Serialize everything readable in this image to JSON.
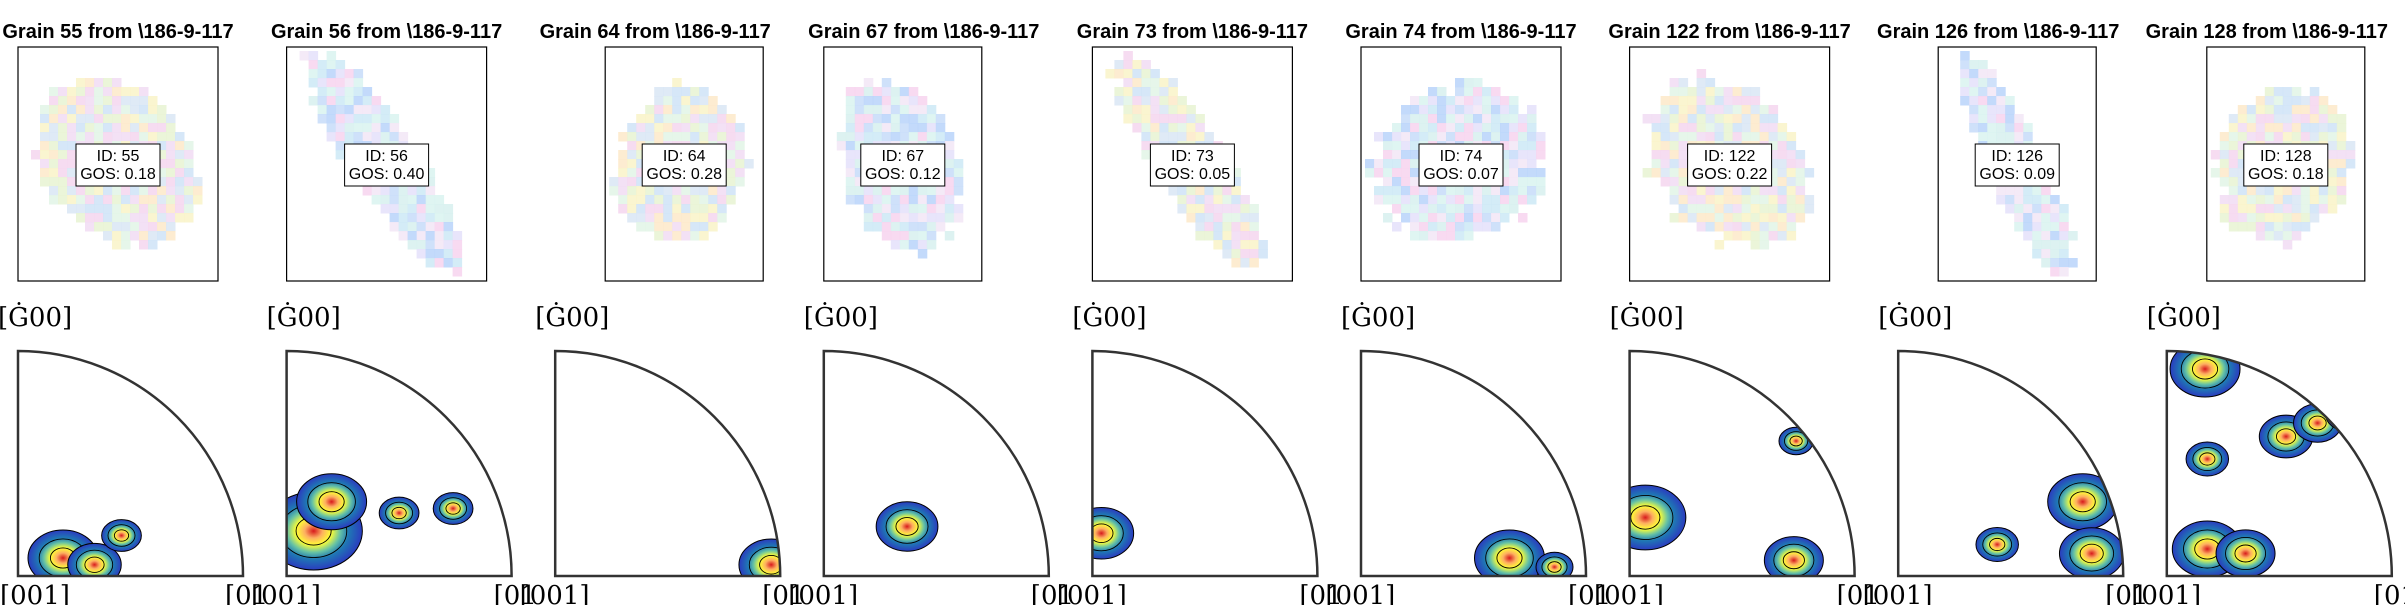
{
  "chart_data": {
    "type": "grain-orientation-panels",
    "map_title_template": "Grain {id} from \\186-9-117",
    "ipf_labels": {
      "top": "[Ġ00]",
      "bottom_left": "[001]",
      "bottom_right": "[01"
    },
    "grains": [
      {
        "id": 55,
        "title": "Grain 55 from \\186-9-117",
        "id_text": "ID: 55",
        "gos_text": "GOS: 0.18",
        "gos": 0.18,
        "blobs": [
          {
            "u": 0.2,
            "v": 0.08,
            "s": 1.0
          },
          {
            "u": 0.34,
            "v": 0.05,
            "s": 0.7
          },
          {
            "u": 0.46,
            "v": 0.18,
            "s": 0.45
          }
        ]
      },
      {
        "id": 56,
        "title": "Grain 56 from \\186-9-117",
        "id_text": "ID: 56",
        "gos_text": "GOS: 0.40",
        "gos": 0.4,
        "blobs": [
          {
            "u": 0.12,
            "v": 0.2,
            "s": 1.5
          },
          {
            "u": 0.2,
            "v": 0.33,
            "s": 1.0
          },
          {
            "u": 0.5,
            "v": 0.28,
            "s": 0.45
          },
          {
            "u": 0.74,
            "v": 0.3,
            "s": 0.45
          }
        ]
      },
      {
        "id": 64,
        "title": "Grain 64 from \\186-9-117",
        "id_text": "ID: 64",
        "gos_text": "GOS: 0.28",
        "gos": 0.28,
        "blobs": [
          {
            "u": 0.96,
            "v": 0.05,
            "s": 0.9
          }
        ]
      },
      {
        "id": 67,
        "title": "Grain 67 from \\186-9-117",
        "id_text": "ID: 67",
        "gos_text": "GOS: 0.12",
        "gos": 0.12,
        "blobs": [
          {
            "u": 0.37,
            "v": 0.22,
            "s": 0.85
          }
        ]
      },
      {
        "id": 73,
        "title": "Grain 73 from \\186-9-117",
        "id_text": "ID: 73",
        "gos_text": "GOS: 0.05",
        "gos": 0.05,
        "blobs": [
          {
            "u": 0.04,
            "v": 0.19,
            "s": 0.9
          }
        ]
      },
      {
        "id": 74,
        "title": "Grain 74 from \\186-9-117",
        "id_text": "ID: 74",
        "gos_text": "GOS: 0.07",
        "gos": 0.07,
        "blobs": [
          {
            "u": 0.66,
            "v": 0.08,
            "s": 1.0
          },
          {
            "u": 0.86,
            "v": 0.04,
            "s": 0.4
          }
        ]
      },
      {
        "id": 122,
        "title": "Grain 122 from \\186-9-117",
        "id_text": "ID: 122",
        "gos_text": "GOS: 0.22",
        "gos": 0.22,
        "blobs": [
          {
            "u": 0.07,
            "v": 0.26,
            "s": 1.2
          },
          {
            "u": 0.73,
            "v": 0.07,
            "s": 0.8
          },
          {
            "u": 0.74,
            "v": 0.6,
            "s": 0.35
          }
        ]
      },
      {
        "id": 126,
        "title": "Grain 126 from \\186-9-117",
        "id_text": "ID: 126",
        "gos_text": "GOS: 0.09",
        "gos": 0.09,
        "blobs": [
          {
            "u": 0.82,
            "v": 0.33,
            "s": 1.0
          },
          {
            "u": 0.86,
            "v": 0.1,
            "s": 0.9
          },
          {
            "u": 0.44,
            "v": 0.14,
            "s": 0.5
          }
        ]
      },
      {
        "id": 128,
        "title": "Grain 128 from \\186-9-117",
        "id_text": "ID: 128",
        "gos_text": "GOS: 0.18",
        "gos": 0.18,
        "blobs": [
          {
            "u": 0.18,
            "v": 0.12,
            "s": 1.0
          },
          {
            "u": 0.35,
            "v": 0.1,
            "s": 0.8
          },
          {
            "u": 0.17,
            "v": 0.92,
            "s": 1.0
          },
          {
            "u": 0.53,
            "v": 0.62,
            "s": 0.7
          },
          {
            "u": 0.18,
            "v": 0.52,
            "s": 0.5
          },
          {
            "u": 0.67,
            "v": 0.68,
            "s": 0.6
          },
          {
            "u": 0.8,
            "v": 0.72,
            "s": 0.5
          }
        ]
      }
    ]
  }
}
